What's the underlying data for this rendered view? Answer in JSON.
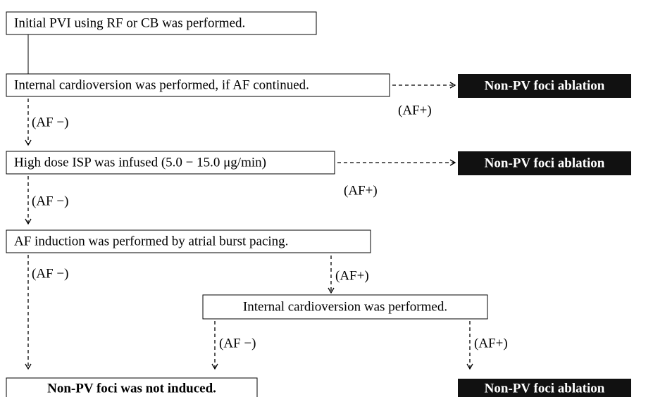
{
  "nodes": [
    {
      "label": "Initial PVI using RF or CB was performed."
    },
    {
      "label": "Internal cardioversion was performed, if AF continued."
    },
    {
      "label": "Non-PV foci ablation"
    },
    {
      "label": "High dose ISP was infused (5.0 − 15.0 μg/min)"
    },
    {
      "label": "Non-PV foci ablation"
    },
    {
      "label": "AF induction was performed by atrial burst pacing."
    },
    {
      "label": "Internal cardioversion was performed."
    },
    {
      "label": "Non-PV foci was not induced."
    },
    {
      "label": "Non-PV foci ablation"
    }
  ],
  "edges": [
    {
      "label": "(AF+)"
    },
    {
      "label": "(AF −)"
    },
    {
      "label": "(AF+)"
    },
    {
      "label": "(AF −)"
    },
    {
      "label": "(AF −)"
    },
    {
      "label": "(AF+)"
    },
    {
      "label": "(AF −)"
    },
    {
      "label": "(AF+)"
    }
  ]
}
